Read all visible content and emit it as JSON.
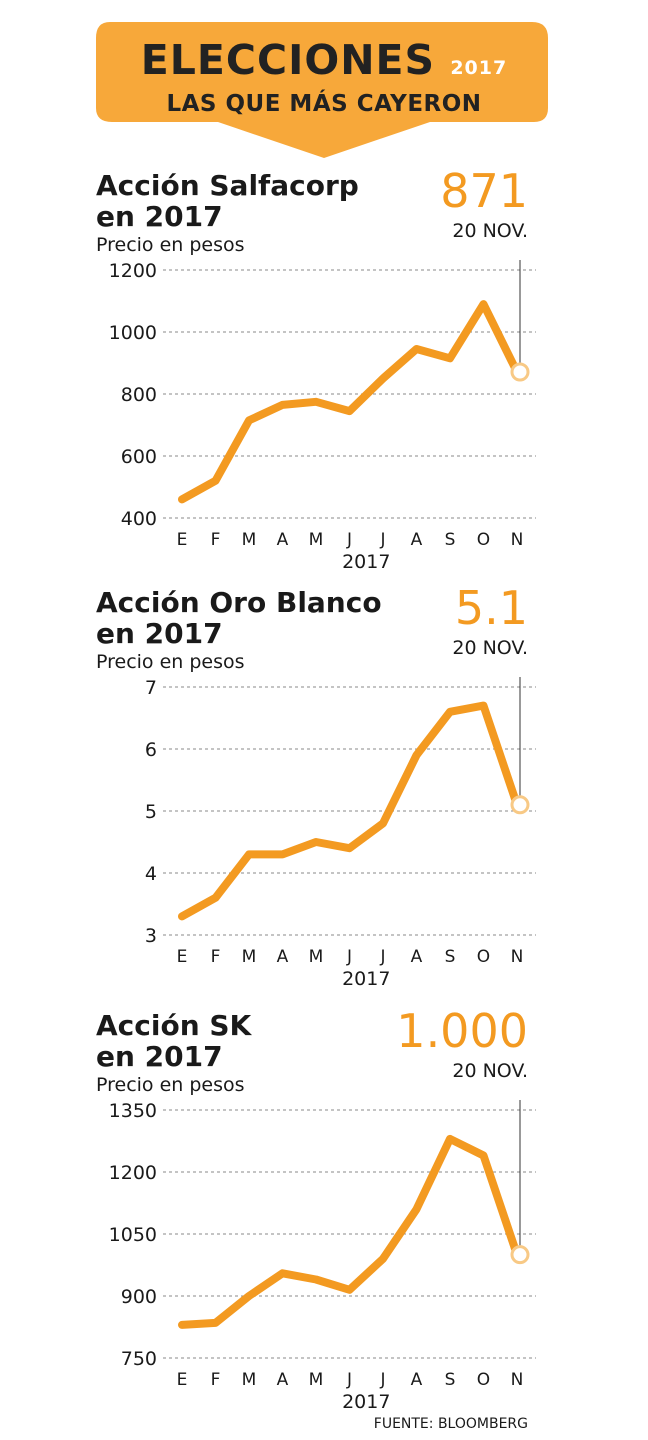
{
  "header": {
    "title": "ELECCIONES",
    "year": "2017",
    "subtitle": "LAS QUE MÁS CAYERON",
    "color": "#f7a83a"
  },
  "chart_data": [
    {
      "type": "line",
      "title": "Acción Salfacorp en 2017",
      "title_lines": [
        "Acción Salfacorp",
        "en 2017"
      ],
      "ylabel": "Precio en pesos",
      "last_value": "871",
      "last_date": "20 NOV.",
      "categories": [
        "E",
        "F",
        "M",
        "A",
        "M",
        "J",
        "J",
        "A",
        "S",
        "O",
        "N"
      ],
      "xlabel": "2017",
      "y_ticks": [
        "1200",
        "1000",
        "800",
        "600",
        "400"
      ],
      "ylim": [
        400,
        1200
      ],
      "values": [
        460,
        520,
        715,
        765,
        775,
        745,
        850,
        945,
        915,
        1090,
        871
      ],
      "color": "#f39a21"
    },
    {
      "type": "line",
      "title": "Acción Oro Blanco en 2017",
      "title_lines": [
        "Acción Oro Blanco",
        "en 2017"
      ],
      "ylabel": "Precio en pesos",
      "last_value": "5.1",
      "last_date": "20 NOV.",
      "categories": [
        "E",
        "F",
        "M",
        "A",
        "M",
        "J",
        "J",
        "A",
        "S",
        "O",
        "N"
      ],
      "xlabel": "2017",
      "y_ticks": [
        "7",
        "6",
        "5",
        "4",
        "3"
      ],
      "ylim": [
        3,
        7
      ],
      "values": [
        3.3,
        3.6,
        4.3,
        4.3,
        4.5,
        4.4,
        4.8,
        5.9,
        6.6,
        6.7,
        5.1
      ],
      "color": "#f39a21"
    },
    {
      "type": "line",
      "title": "Acción SK en 2017",
      "title_lines": [
        "Acción SK",
        "en 2017"
      ],
      "ylabel": "Precio en pesos",
      "last_value": "1.000",
      "last_date": "20 NOV.",
      "categories": [
        "E",
        "F",
        "M",
        "A",
        "M",
        "J",
        "J",
        "A",
        "S",
        "O",
        "N"
      ],
      "xlabel": "2017",
      "y_ticks": [
        "1350",
        "1200",
        "1050",
        "900",
        "750"
      ],
      "ylim": [
        750,
        1350
      ],
      "values": [
        830,
        835,
        900,
        955,
        940,
        915,
        990,
        1110,
        1280,
        1240,
        1000
      ],
      "color": "#f39a21"
    }
  ],
  "source": "FUENTE: BLOOMBERG"
}
